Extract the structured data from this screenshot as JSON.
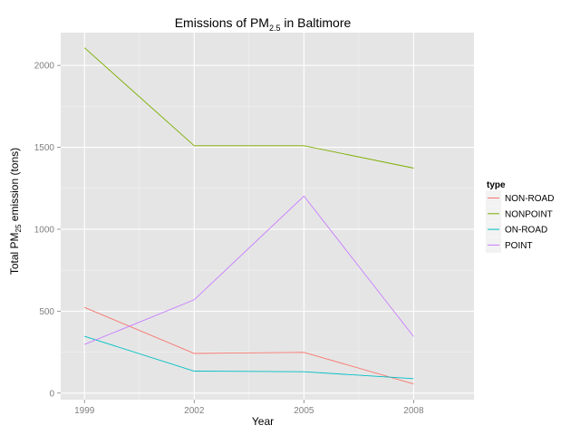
{
  "chart_data": {
    "type": "line",
    "title": {
      "main": "Emissions of PM",
      "sub": "2.5",
      "suffix": " in Baltimore"
    },
    "xlabel": "Year",
    "ylabel": {
      "pre": "Total PM",
      "sub": "25",
      "post": " emission (tons)"
    },
    "x": [
      1999,
      2002,
      2005,
      2008
    ],
    "xticks": [
      "1999",
      "2002",
      "2005",
      "2008"
    ],
    "xlim": [
      1998.35,
      2009.65
    ],
    "yticks": [
      0,
      500,
      1000,
      1500,
      2000
    ],
    "ylim": [
      -40,
      2200
    ],
    "grid": true,
    "legend": {
      "title": "type",
      "placement": "right"
    },
    "series": [
      {
        "name": "NON-ROAD",
        "color": "#F8766D",
        "values": [
          522.9,
          242.2,
          248.9,
          55.8
        ]
      },
      {
        "name": "NONPOINT",
        "color": "#7CAE00",
        "values": [
          2107.6,
          1509.5,
          1509.5,
          1373.2
        ]
      },
      {
        "name": "ON-ROAD",
        "color": "#00BFC4",
        "values": [
          346.8,
          134.3,
          130.4,
          88.3
        ]
      },
      {
        "name": "POINT",
        "color": "#C77CFF",
        "values": [
          296.8,
          569.3,
          1202.5,
          345.0
        ]
      }
    ]
  }
}
